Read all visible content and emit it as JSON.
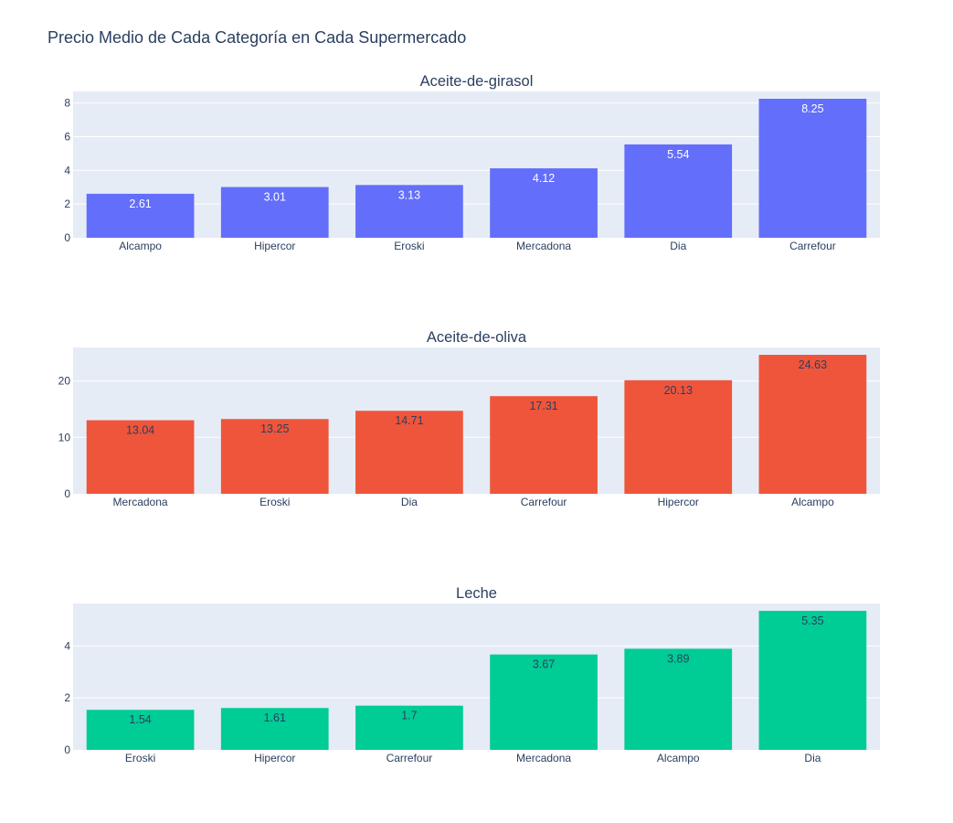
{
  "title": "Precio Medio de Cada Categoría en Cada Supermercado",
  "chart_data": [
    {
      "type": "bar",
      "title": "Aceite-de-girasol",
      "categories": [
        "Alcampo",
        "Hipercor",
        "Eroski",
        "Mercadona",
        "Dia",
        "Carrefour"
      ],
      "values": [
        2.61,
        3.01,
        3.13,
        4.12,
        5.54,
        8.25
      ],
      "value_labels": [
        "2.61",
        "3.01",
        "3.13",
        "4.12",
        "5.54",
        "8.25"
      ],
      "yticks": [
        0,
        2,
        4,
        6,
        8
      ],
      "ylim": [
        0,
        8.684
      ],
      "color": "#636efa",
      "label_color": "#ffffff",
      "grid": true
    },
    {
      "type": "bar",
      "title": "Aceite-de-oliva",
      "categories": [
        "Mercadona",
        "Eroski",
        "Dia",
        "Carrefour",
        "Hipercor",
        "Alcampo"
      ],
      "values": [
        13.04,
        13.25,
        14.71,
        17.31,
        20.13,
        24.63
      ],
      "value_labels": [
        "13.04",
        "13.25",
        "14.71",
        "17.31",
        "20.13",
        "24.63"
      ],
      "yticks": [
        0,
        10,
        20
      ],
      "ylim": [
        0,
        25.93
      ],
      "color": "#ef553b",
      "label_color": "#2a3f5f",
      "grid": true
    },
    {
      "type": "bar",
      "title": "Leche",
      "categories": [
        "Eroski",
        "Hipercor",
        "Carrefour",
        "Mercadona",
        "Alcampo",
        "Dia"
      ],
      "values": [
        1.54,
        1.61,
        1.7,
        3.67,
        3.89,
        5.35
      ],
      "value_labels": [
        "1.54",
        "1.61",
        "1.7",
        "3.67",
        "3.89",
        "5.35"
      ],
      "yticks": [
        0,
        2,
        4
      ],
      "ylim": [
        0,
        5.63
      ],
      "color": "#00cc96",
      "label_color": "#2a3f5f",
      "grid": true
    }
  ]
}
